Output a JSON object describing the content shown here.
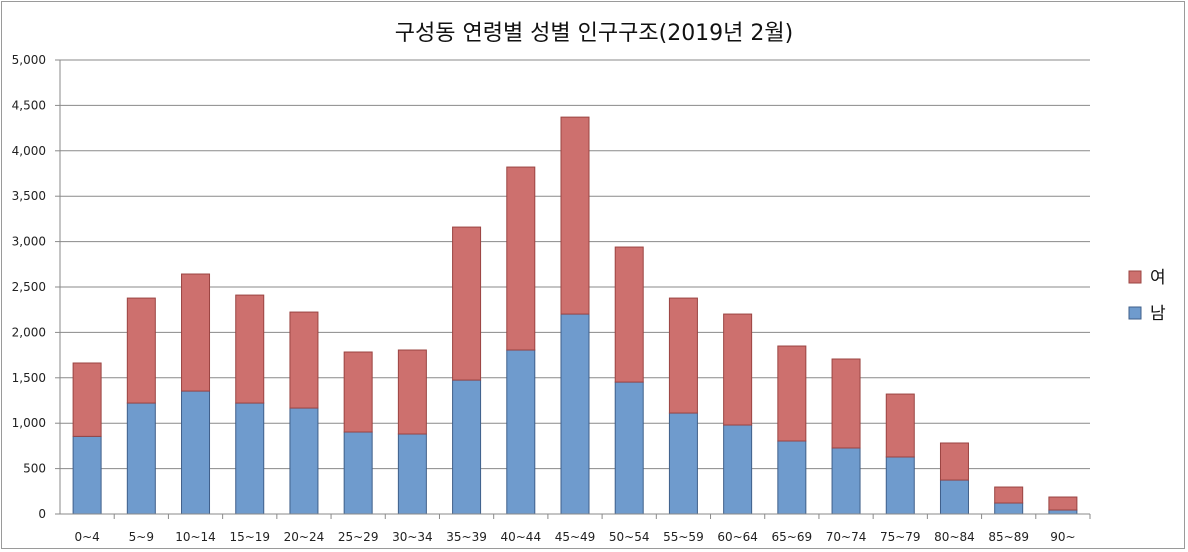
{
  "chart_data": {
    "type": "bar",
    "stacked": true,
    "title": "구성동 연령별 성별 인구구조(2019년 2월)",
    "xlabel": "",
    "ylabel": "",
    "ylim": [
      0,
      5000
    ],
    "yticks": [
      0,
      500,
      1000,
      1500,
      2000,
      2500,
      3000,
      3500,
      4000,
      4500,
      5000
    ],
    "ytick_labels": [
      "0",
      "500",
      "1,000",
      "1,500",
      "2,000",
      "2,500",
      "3,000",
      "3,500",
      "4,000",
      "4,500",
      "5,000"
    ],
    "grid": true,
    "legend_position": "right",
    "categories": [
      "0~4",
      "5~9",
      "10~14",
      "15~19",
      "20~24",
      "25~29",
      "30~34",
      "35~39",
      "40~44",
      "45~49",
      "50~54",
      "55~59",
      "60~64",
      "65~69",
      "70~74",
      "75~79",
      "80~84",
      "85~89",
      "90~"
    ],
    "series": [
      {
        "name": "남",
        "color": "#6f9bcd",
        "values": [
          855,
          1222,
          1354,
          1222,
          1167,
          903,
          881,
          1475,
          1806,
          2202,
          1453,
          1112,
          980,
          804,
          727,
          628,
          374,
          121,
          44
        ]
      },
      {
        "name": "여",
        "color": "#cd706e",
        "values": [
          808,
          1156,
          1289,
          1189,
          1057,
          881,
          925,
          1685,
          2015,
          2169,
          1487,
          1266,
          1222,
          1046,
          980,
          693,
          408,
          176,
          143
        ]
      }
    ]
  }
}
